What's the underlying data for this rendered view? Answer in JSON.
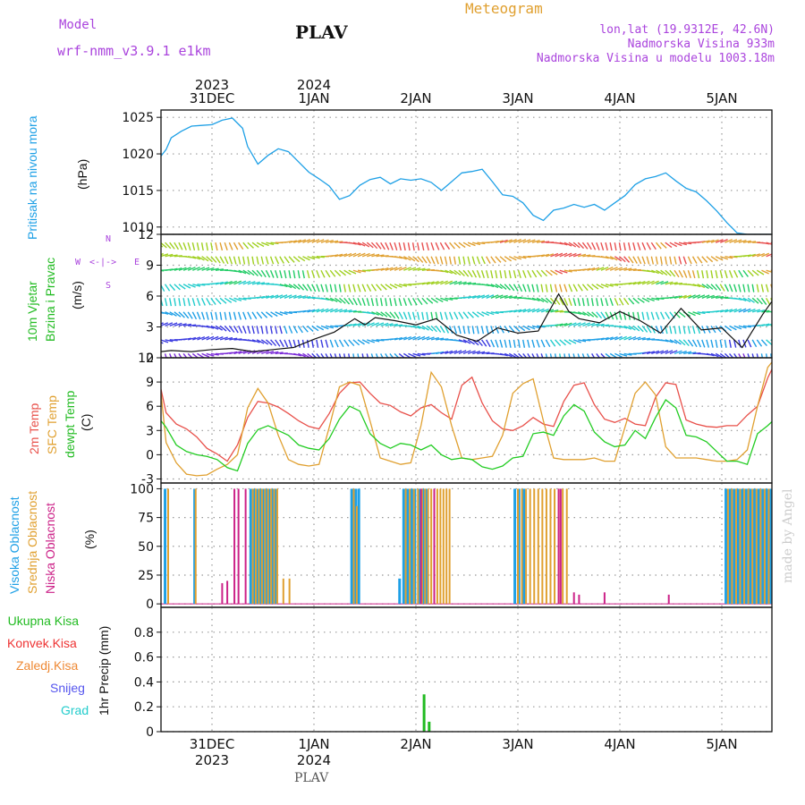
{
  "header": {
    "model_label": "Model",
    "model_name": "wrf-nmm_v3.9.1 e1km",
    "station": "PLAV",
    "chart_type": "Meteogram",
    "coords": "lon,lat (19.9312E, 42.6N)",
    "elevation": "Nadmorska Visina 933m",
    "model_elevation": "Nadmorska Visina u modelu 1003.18m",
    "footer_station": "PLAV",
    "credit": "made by Angel"
  },
  "colors": {
    "pressure": "#1ea0e6",
    "temp2m": "#e8504a",
    "sfc_temp": "#e0a030",
    "dewpt": "#22cc22",
    "high_cloud": "#1ea0e6",
    "mid_cloud": "#e0a030",
    "low_cloud": "#cc2288",
    "total_precip": "#22bb22",
    "conv_precip": "#ee3333",
    "frozen_precip": "#ee8833",
    "snow": "#5555ee",
    "graupel": "#22cccc",
    "model": "#aa44dd"
  },
  "time_axis": {
    "top_years": [
      "2023",
      "2024"
    ],
    "days": [
      "31DEC",
      "1JAN",
      "2JAN",
      "3JAN",
      "4JAN",
      "5JAN"
    ],
    "bottom_years": [
      "2023",
      "2024"
    ]
  },
  "panel_labels": {
    "pressure": [
      "Pritisak na nivou mora",
      "(hPa)"
    ],
    "wind": [
      "10m Vjetar",
      "Brzina i Pravac",
      "(m/s)"
    ],
    "compass": [
      "N",
      "<-|->",
      "W",
      "E",
      "S"
    ],
    "temp": [
      "2m Temp",
      "SFC Temp",
      "dewpt Temp",
      "(C)"
    ],
    "cloud": [
      "Visoka Oblacnost",
      "Srednja Oblacnost",
      "Niska Oblacnost",
      "(%)"
    ],
    "precip": [
      "Ukupna Kisa",
      "Konvek.Kisa",
      "Zaledj.Kisa",
      "Snijeg",
      "Grad",
      "1hr Precip (mm)"
    ]
  },
  "chart_data": [
    {
      "type": "line",
      "name": "pressure",
      "ylabel": "(hPa)",
      "ylim": [
        1009,
        1026
      ],
      "yticks": [
        1010,
        1015,
        1020,
        1025
      ],
      "grid": true,
      "series": [
        {
          "name": "Pritisak na nivou mora",
          "x": [
            -0.6,
            -0.5,
            -0.45,
            -0.4,
            -0.3,
            -0.2,
            -0.1,
            0.0,
            0.1,
            0.2,
            0.3,
            0.35,
            0.45,
            0.55,
            0.65,
            0.75,
            0.85,
            0.95,
            1.05,
            1.15,
            1.25,
            1.35,
            1.45,
            1.55,
            1.65,
            1.75,
            1.85,
            1.95,
            2.05,
            2.15,
            2.25,
            2.35,
            2.45,
            2.55,
            2.65,
            2.75,
            2.85,
            2.95,
            3.05,
            3.15,
            3.25,
            3.35,
            3.45,
            3.55,
            3.65,
            3.75,
            3.85,
            3.95,
            4.05,
            4.15,
            4.25,
            4.35,
            4.45,
            4.55,
            4.65,
            4.75,
            4.85,
            4.95,
            5.05,
            5.15,
            5.25,
            5.35,
            5.45,
            5.5
          ],
          "values": [
            1019.8,
            1019.7,
            1020.6,
            1022.2,
            1023.1,
            1023.8,
            1023.9,
            1024.0,
            1024.6,
            1024.9,
            1023.5,
            1021.0,
            1018.6,
            1019.8,
            1020.7,
            1020.3,
            1018.9,
            1017.5,
            1016.6,
            1015.6,
            1013.8,
            1014.3,
            1015.7,
            1016.5,
            1016.8,
            1015.9,
            1016.6,
            1016.4,
            1016.6,
            1016.1,
            1015.0,
            1016.2,
            1017.4,
            1017.6,
            1017.9,
            1016.2,
            1014.4,
            1014.2,
            1013.3,
            1011.6,
            1010.9,
            1012.3,
            1012.6,
            1013.1,
            1012.7,
            1013.1,
            1012.3,
            1013.3,
            1014.3,
            1015.8,
            1016.6,
            1016.9,
            1017.4,
            1016.3,
            1015.3,
            1014.8,
            1013.6,
            1012.2,
            1010.6,
            1009.2,
            1009.0,
            1009.0,
            1009.0,
            1009.0
          ]
        }
      ]
    },
    {
      "type": "line",
      "name": "wind",
      "ylabel": "(m/s)",
      "ylim": [
        0,
        12
      ],
      "yticks": [
        0,
        3,
        6,
        9,
        12
      ],
      "grid": true,
      "series": [
        {
          "name": "10m Vjetar",
          "x": [
            -0.6,
            -0.4,
            -0.2,
            0.0,
            0.2,
            0.4,
            0.6,
            0.8,
            1.0,
            1.2,
            1.4,
            1.5,
            1.6,
            1.8,
            2.0,
            2.2,
            2.4,
            2.6,
            2.8,
            3.0,
            3.2,
            3.4,
            3.5,
            3.6,
            3.8,
            4.0,
            4.2,
            4.4,
            4.6,
            4.8,
            5.0,
            5.2,
            5.4,
            5.5
          ],
          "values": [
            0.5,
            0.7,
            0.6,
            0.8,
            0.9,
            0.6,
            0.8,
            1.0,
            1.8,
            2.5,
            3.8,
            3.2,
            3.9,
            3.6,
            3.2,
            3.8,
            2.2,
            1.6,
            2.9,
            2.4,
            2.6,
            6.2,
            4.5,
            3.8,
            3.4,
            4.5,
            3.6,
            2.4,
            4.8,
            2.7,
            2.9,
            1.0,
            4.2,
            5.6
          ]
        }
      ]
    },
    {
      "type": "line",
      "name": "temperature",
      "ylabel": "(C)",
      "ylim": [
        -3.5,
        12
      ],
      "yticks": [
        -3,
        0,
        3,
        6,
        9,
        12
      ],
      "grid": true,
      "series": [
        {
          "name": "2m Temp",
          "x": [
            -0.6,
            -0.55,
            -0.5,
            -0.45,
            -0.35,
            -0.25,
            -0.15,
            -0.05,
            0.05,
            0.15,
            0.25,
            0.35,
            0.45,
            0.55,
            0.65,
            0.75,
            0.85,
            0.95,
            1.05,
            1.15,
            1.25,
            1.35,
            1.45,
            1.55,
            1.65,
            1.75,
            1.85,
            1.95,
            2.05,
            2.15,
            2.25,
            2.35,
            2.45,
            2.55,
            2.65,
            2.75,
            2.85,
            2.95,
            3.05,
            3.15,
            3.25,
            3.35,
            3.45,
            3.55,
            3.65,
            3.75,
            3.85,
            3.95,
            4.05,
            4.15,
            4.25,
            4.35,
            4.45,
            4.55,
            4.65,
            4.75,
            4.85,
            4.95,
            5.05,
            5.15,
            5.25,
            5.35,
            5.45,
            5.5
          ],
          "values": [
            7.8,
            8.4,
            8.1,
            5.2,
            3.8,
            3.2,
            2.2,
            0.8,
            0.1,
            -0.8,
            1.2,
            4.6,
            6.6,
            6.4,
            5.9,
            5.1,
            4.2,
            3.5,
            3.2,
            5.1,
            7.6,
            8.9,
            9.0,
            7.6,
            6.4,
            6.1,
            5.3,
            4.8,
            5.8,
            6.2,
            5.2,
            4.4,
            8.6,
            9.6,
            6.4,
            4.2,
            3.2,
            3.0,
            3.6,
            4.6,
            3.8,
            3.5,
            6.6,
            8.6,
            8.9,
            6.2,
            4.4,
            4.0,
            4.5,
            3.8,
            3.6,
            7.1,
            8.9,
            8.7,
            4.3,
            3.8,
            3.5,
            3.4,
            3.6,
            3.6,
            4.9,
            6.0,
            9.5,
            10.8
          ]
        },
        {
          "name": "SFC Temp",
          "x": [
            -0.6,
            -0.55,
            -0.5,
            -0.45,
            -0.35,
            -0.25,
            -0.15,
            -0.05,
            0.05,
            0.15,
            0.25,
            0.35,
            0.45,
            0.55,
            0.65,
            0.75,
            0.85,
            0.95,
            1.05,
            1.15,
            1.25,
            1.35,
            1.45,
            1.55,
            1.65,
            1.75,
            1.85,
            1.95,
            2.05,
            2.15,
            2.25,
            2.35,
            2.45,
            2.55,
            2.65,
            2.75,
            2.85,
            2.95,
            3.05,
            3.15,
            3.25,
            3.35,
            3.45,
            3.55,
            3.65,
            3.75,
            3.85,
            3.95,
            4.05,
            4.15,
            4.25,
            4.35,
            4.45,
            4.55,
            4.65,
            4.75,
            4.85,
            4.95,
            5.05,
            5.15,
            5.25,
            5.35,
            5.45,
            5.5
          ],
          "values": [
            8.5,
            9.0,
            7.6,
            1.5,
            -1.0,
            -2.4,
            -2.6,
            -2.5,
            -1.8,
            -1.2,
            0.0,
            5.8,
            8.2,
            6.4,
            2.4,
            -0.6,
            -1.2,
            -1.4,
            -1.2,
            3.4,
            8.4,
            9.0,
            8.6,
            4.2,
            -0.4,
            -0.8,
            -1.2,
            -1.0,
            3.6,
            10.2,
            8.4,
            3.6,
            -0.4,
            -0.6,
            -0.4,
            -0.2,
            2.4,
            7.6,
            8.8,
            9.4,
            4.2,
            -0.4,
            -0.6,
            -0.6,
            -0.6,
            -0.4,
            -0.8,
            -0.8,
            3.4,
            7.6,
            9.0,
            7.4,
            1.0,
            -0.4,
            -0.4,
            -0.4,
            -0.6,
            -0.8,
            -0.8,
            -0.6,
            0.6,
            6.0,
            10.8,
            11.6
          ]
        },
        {
          "name": "dewpt Temp",
          "x": [
            -0.6,
            -0.55,
            -0.5,
            -0.45,
            -0.35,
            -0.25,
            -0.15,
            -0.05,
            0.05,
            0.15,
            0.25,
            0.35,
            0.45,
            0.55,
            0.65,
            0.75,
            0.85,
            0.95,
            1.05,
            1.15,
            1.25,
            1.35,
            1.45,
            1.55,
            1.65,
            1.75,
            1.85,
            1.95,
            2.05,
            2.15,
            2.25,
            2.35,
            2.45,
            2.55,
            2.65,
            2.75,
            2.85,
            2.95,
            3.05,
            3.15,
            3.25,
            3.35,
            3.45,
            3.55,
            3.65,
            3.75,
            3.85,
            3.95,
            4.05,
            4.15,
            4.25,
            4.35,
            4.45,
            4.55,
            4.65,
            4.75,
            4.85,
            4.95,
            5.05,
            5.15,
            5.25,
            5.35,
            5.45,
            5.5
          ],
          "values": [
            4.6,
            5.0,
            4.2,
            3.4,
            1.2,
            0.4,
            0.0,
            -0.2,
            -0.6,
            -1.6,
            -2.0,
            1.4,
            3.1,
            3.6,
            3.0,
            2.4,
            1.2,
            0.8,
            0.6,
            2.0,
            4.4,
            6.0,
            5.4,
            2.6,
            1.4,
            0.8,
            1.4,
            1.2,
            0.6,
            1.2,
            0.0,
            -0.6,
            -0.4,
            -0.6,
            -1.5,
            -1.8,
            -1.4,
            -0.4,
            -0.2,
            2.6,
            2.8,
            2.4,
            4.8,
            6.2,
            5.4,
            2.8,
            1.6,
            1.0,
            1.2,
            3.0,
            2.0,
            4.6,
            6.8,
            5.8,
            2.4,
            2.2,
            1.6,
            0.4,
            -0.8,
            -0.8,
            -1.2,
            2.6,
            3.6,
            4.2
          ]
        }
      ]
    },
    {
      "type": "bar",
      "name": "cloud_cover",
      "ylabel": "(%)",
      "ylim": [
        -3,
        105
      ],
      "yticks": [
        0,
        25,
        50,
        75,
        100
      ],
      "grid": true,
      "series": [
        {
          "name": "Visoka Oblacnost",
          "x": [
            -0.65,
            -0.55,
            -0.46,
            -0.17,
            0.38,
            0.41,
            0.44,
            0.47,
            0.5,
            0.53,
            0.56,
            0.59,
            0.62,
            1.37,
            1.41,
            1.44,
            1.84,
            1.88,
            1.92,
            1.96,
            1.99,
            2.04,
            2.07,
            2.1,
            2.97,
            3.01,
            3.06,
            5.04,
            5.08,
            5.12,
            5.16,
            5.2,
            5.24,
            5.28,
            5.32,
            5.36,
            5.4,
            5.44,
            5.48
          ],
          "values": [
            100,
            100,
            100,
            100,
            100,
            100,
            100,
            100,
            100,
            100,
            100,
            100,
            100,
            100,
            100,
            100,
            22,
            100,
            100,
            100,
            100,
            100,
            100,
            100,
            100,
            100,
            100,
            100,
            100,
            100,
            100,
            100,
            100,
            100,
            100,
            100,
            100,
            100,
            100
          ]
        },
        {
          "name": "Srednja Oblacnost",
          "x": [
            -0.62,
            -0.52,
            -0.43,
            -0.16,
            0.4,
            0.43,
            0.46,
            0.49,
            0.52,
            0.55,
            0.58,
            0.61,
            0.64,
            0.7,
            0.76,
            1.39,
            1.42,
            1.9,
            1.94,
            1.98,
            2.02,
            2.06,
            2.09,
            2.12,
            2.15,
            2.18,
            2.21,
            2.24,
            2.27,
            2.3,
            2.33,
            3.0,
            3.04,
            3.08,
            3.12,
            3.16,
            3.2,
            3.24,
            3.28,
            3.32,
            3.36,
            3.4,
            3.44,
            3.48,
            5.06,
            5.1,
            5.14,
            5.18,
            5.22,
            5.26,
            5.3,
            5.34,
            5.38,
            5.42,
            5.46,
            5.5
          ],
          "values": [
            80,
            65,
            100,
            100,
            100,
            100,
            100,
            100,
            100,
            100,
            100,
            100,
            100,
            22,
            22,
            100,
            85,
            100,
            100,
            100,
            100,
            100,
            100,
            100,
            100,
            100,
            100,
            100,
            100,
            100,
            100,
            100,
            100,
            100,
            100,
            100,
            100,
            100,
            100,
            100,
            100,
            100,
            100,
            100,
            100,
            100,
            100,
            100,
            100,
            100,
            100,
            100,
            100,
            100,
            100,
            100
          ]
        },
        {
          "name": "Niska Oblacnost",
          "x": [
            0.1,
            0.15,
            0.22,
            0.26,
            0.33,
            2.05,
            2.18,
            3.4,
            3.42,
            3.55,
            3.6,
            3.85,
            4.48,
            5.55
          ],
          "values": [
            18,
            20,
            100,
            100,
            100,
            100,
            100,
            100,
            100,
            10,
            8,
            10,
            8,
            100
          ]
        }
      ]
    },
    {
      "type": "bar",
      "name": "precipitation",
      "ylabel": "1hr Precip (mm)",
      "ylim": [
        0,
        1.0
      ],
      "yticks": [
        0,
        0.2,
        0.4,
        0.6,
        0.8
      ],
      "grid": true,
      "series": [
        {
          "name": "Ukupna Kisa",
          "x": [
            2.08,
            2.13
          ],
          "values": [
            0.3,
            0.08
          ]
        },
        {
          "name": "Konvek.Kisa",
          "x": [],
          "values": []
        },
        {
          "name": "Zaledj.Kisa",
          "x": [],
          "values": []
        },
        {
          "name": "Snijeg",
          "x": [],
          "values": []
        },
        {
          "name": "Grad",
          "x": [],
          "values": []
        }
      ]
    }
  ]
}
